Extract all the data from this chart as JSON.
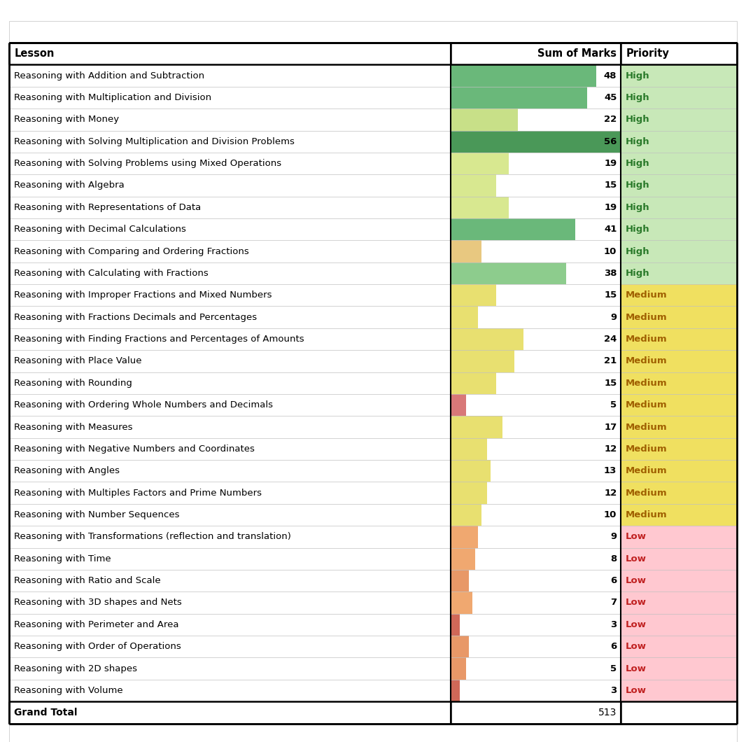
{
  "rows": [
    {
      "lesson": "Reasoning with Addition and Subtraction",
      "marks": 48,
      "priority": "High"
    },
    {
      "lesson": "Reasoning with Multiplication and Division",
      "marks": 45,
      "priority": "High"
    },
    {
      "lesson": "Reasoning with Money",
      "marks": 22,
      "priority": "High"
    },
    {
      "lesson": "Reasoning with Solving Multiplication and Division Problems",
      "marks": 56,
      "priority": "High"
    },
    {
      "lesson": "Reasoning with Solving Problems using Mixed Operations",
      "marks": 19,
      "priority": "High"
    },
    {
      "lesson": "Reasoning with Algebra",
      "marks": 15,
      "priority": "High"
    },
    {
      "lesson": "Reasoning with Representations of Data",
      "marks": 19,
      "priority": "High"
    },
    {
      "lesson": "Reasoning with Decimal Calculations",
      "marks": 41,
      "priority": "High"
    },
    {
      "lesson": "Reasoning with Comparing and Ordering Fractions",
      "marks": 10,
      "priority": "High"
    },
    {
      "lesson": "Reasoning with Calculating with Fractions",
      "marks": 38,
      "priority": "High"
    },
    {
      "lesson": "Reasoning with Improper Fractions and Mixed Numbers",
      "marks": 15,
      "priority": "Medium"
    },
    {
      "lesson": "Reasoning with Fractions Decimals and Percentages",
      "marks": 9,
      "priority": "Medium"
    },
    {
      "lesson": "Reasoning with Finding Fractions and Percentages of Amounts",
      "marks": 24,
      "priority": "Medium"
    },
    {
      "lesson": "Reasoning with Place Value",
      "marks": 21,
      "priority": "Medium"
    },
    {
      "lesson": "Reasoning with Rounding",
      "marks": 15,
      "priority": "Medium"
    },
    {
      "lesson": "Reasoning with Ordering Whole Numbers and Decimals",
      "marks": 5,
      "priority": "Medium"
    },
    {
      "lesson": "Reasoning with Measures",
      "marks": 17,
      "priority": "Medium"
    },
    {
      "lesson": "Reasoning with Negative Numbers and Coordinates",
      "marks": 12,
      "priority": "Medium"
    },
    {
      "lesson": "Reasoning with Angles",
      "marks": 13,
      "priority": "Medium"
    },
    {
      "lesson": "Reasoning with Multiples Factors and Prime Numbers",
      "marks": 12,
      "priority": "Medium"
    },
    {
      "lesson": "Reasoning with Number Sequences",
      "marks": 10,
      "priority": "Medium"
    },
    {
      "lesson": "Reasoning with Transformations (reflection and translation)",
      "marks": 9,
      "priority": "Low"
    },
    {
      "lesson": "Reasoning with Time",
      "marks": 8,
      "priority": "Low"
    },
    {
      "lesson": "Reasoning with Ratio and Scale",
      "marks": 6,
      "priority": "Low"
    },
    {
      "lesson": "Reasoning with 3D shapes and Nets",
      "marks": 7,
      "priority": "Low"
    },
    {
      "lesson": "Reasoning with Perimeter and Area",
      "marks": 3,
      "priority": "Low"
    },
    {
      "lesson": "Reasoning with Order of Operations",
      "marks": 6,
      "priority": "Low"
    },
    {
      "lesson": "Reasoning with 2D shapes",
      "marks": 5,
      "priority": "Low"
    },
    {
      "lesson": "Reasoning with Volume",
      "marks": 3,
      "priority": "Low"
    }
  ],
  "grand_total": 513,
  "max_marks": 56,
  "header": [
    "Lesson",
    "Sum of Marks",
    "Priority"
  ],
  "bg_color": "#ffffff",
  "grid_color": "#c0c0c0",
  "outer_border_color": "#000000",
  "priority_bg": {
    "High": "#c8e8b8",
    "Medium": "#f0e060",
    "Low": "#ffc8d0"
  },
  "priority_text": {
    "High": "#2a7a2a",
    "Medium": "#a06000",
    "Low": "#c02020"
  },
  "bar_color": {
    "High": "#7ec87e",
    "Medium": "#e8d060",
    "Low": "#e89060"
  },
  "bar_bg": {
    "High": "#ffffff",
    "Medium": "#f5f0c0",
    "Low": "#fff0e8"
  },
  "row_colors": {
    "48": "#6ab87a",
    "45": "#7ec87a",
    "22": "#d8e890",
    "56": "#4a9858",
    "19_high": "#d8e890",
    "15_high": "#d8e890",
    "19_high2": "#d8e890",
    "41": "#8dc87a",
    "10_high": "#e8c888",
    "38": "#90c878",
    "15_med": "#e8e870",
    "9_med": "#e8b880",
    "24": "#e8e870",
    "21": "#e8e870",
    "15_med2": "#e8e870",
    "5_med": "#d87878",
    "17": "#e8e870",
    "12_med": "#e8e870",
    "13": "#e8e870",
    "12_med2": "#e8e870",
    "10_med": "#e8e870",
    "9_low": "#f0a878",
    "8": "#f0a878",
    "6_low": "#f0a878",
    "7": "#f0a878",
    "3_low": "#d87060",
    "6_low2": "#f0a878",
    "5_low": "#f0a878",
    "3_low2": "#d87060"
  }
}
